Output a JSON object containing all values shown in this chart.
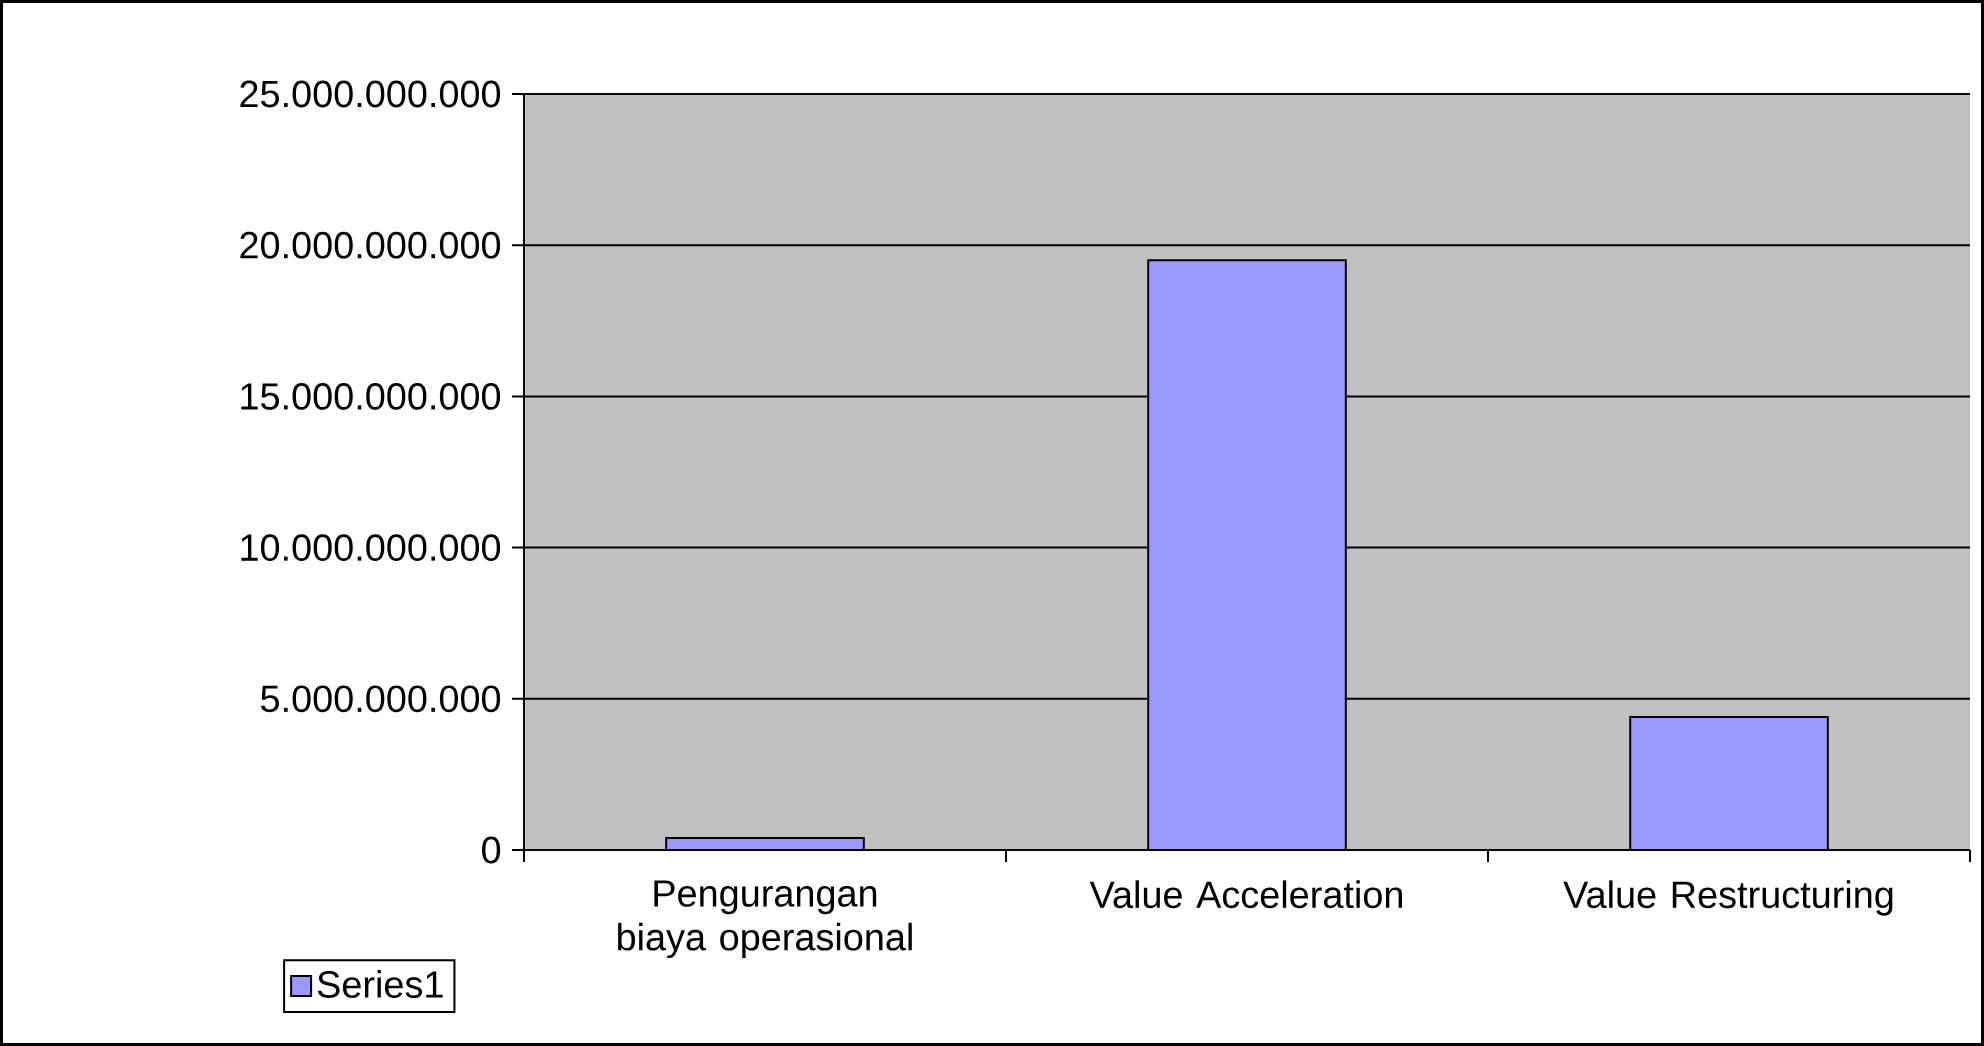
{
  "chart_data": {
    "type": "bar",
    "categories": [
      "Pengurangan biaya operasional",
      "Value Acceleration",
      "Value Restructuring"
    ],
    "series": [
      {
        "name": "Series1",
        "color": "#9999ff",
        "values": [
          400000000,
          19500000000,
          4400000000
        ]
      }
    ],
    "ylim": [
      0,
      25000000000
    ],
    "yticks": [
      {
        "value": 0,
        "label": "0"
      },
      {
        "value": 5000000000,
        "label": "5.000.000.000"
      },
      {
        "value": 10000000000,
        "label": "10.000.000.000"
      },
      {
        "value": 15000000000,
        "label": "15.000.000.000"
      },
      {
        "value": 20000000000,
        "label": "20.000.000.000"
      },
      {
        "value": 25000000000,
        "label": "25.000.000.000"
      }
    ],
    "grid": "y",
    "legend": "bottom left"
  }
}
